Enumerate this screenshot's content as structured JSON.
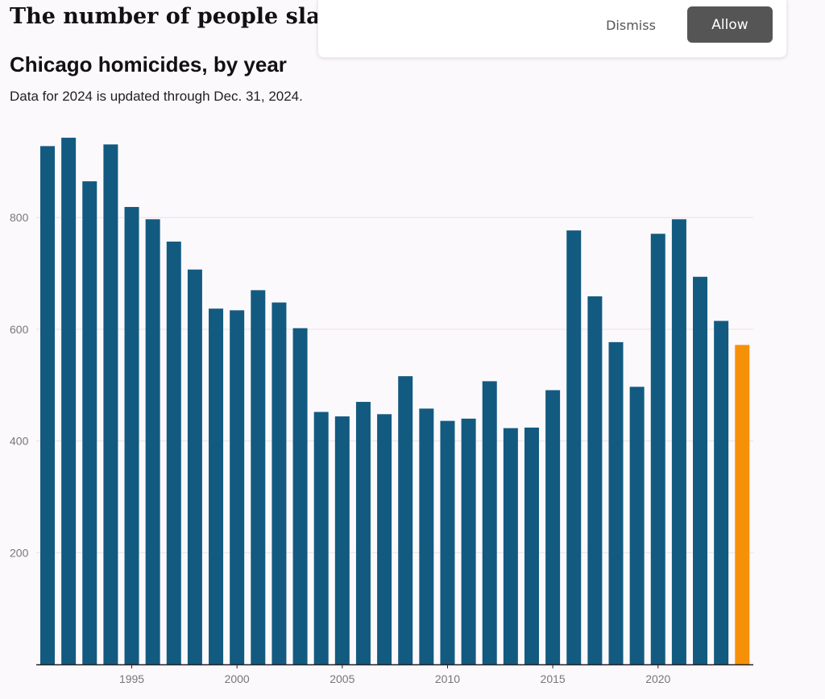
{
  "article": {
    "headline": "The number of people slain in Chicago"
  },
  "consent_banner": {
    "dismiss_label": "Dismiss",
    "allow_label": "Allow"
  },
  "colors": {
    "bar": "#135a80",
    "highlight_bar": "#f79009",
    "gridline": "#e6e2e6",
    "axis": "#222222",
    "tick_label": "#777777"
  },
  "chart_data": {
    "type": "bar",
    "title": "Chicago homicides, by year",
    "subtitle": "Data for 2024 is updated through Dec. 31, 2024.",
    "xlabel": "",
    "ylabel": "",
    "categories": [
      1991,
      1992,
      1993,
      1994,
      1995,
      1996,
      1997,
      1998,
      1999,
      2000,
      2001,
      2002,
      2003,
      2004,
      2005,
      2006,
      2007,
      2008,
      2009,
      2010,
      2011,
      2012,
      2013,
      2014,
      2015,
      2016,
      2017,
      2018,
      2019,
      2020,
      2021,
      2022,
      2023,
      2024
    ],
    "values": [
      928,
      943,
      865,
      931,
      819,
      797,
      757,
      707,
      637,
      634,
      670,
      648,
      602,
      452,
      444,
      470,
      448,
      516,
      458,
      436,
      440,
      507,
      423,
      424,
      491,
      777,
      659,
      577,
      497,
      771,
      797,
      694,
      615,
      572
    ],
    "highlight_category": 2024,
    "ylim": [
      0,
      960
    ],
    "y_ticks": [
      200,
      400,
      600,
      800
    ],
    "x_ticks": [
      1995,
      2000,
      2005,
      2010,
      2015,
      2020
    ],
    "grid": true,
    "legend": "none"
  }
}
